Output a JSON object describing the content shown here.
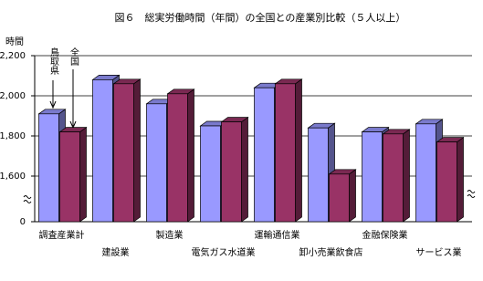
{
  "chart_data": {
    "type": "bar3d",
    "title": "図６　総実労働時間（年間）の全国との産業別比較（５人以上）",
    "y_label": "時間",
    "categories": [
      "調査産業計",
      "建設業",
      "製造業",
      "電気ガス水道業",
      "運輸通信業",
      "卸小売業飲食店",
      "金融保険業",
      "サービス業"
    ],
    "series": [
      {
        "name": "鳥取県",
        "color": "#9999ff",
        "values": [
          1910,
          2080,
          1960,
          1850,
          2040,
          1840,
          1820,
          1860
        ]
      },
      {
        "name": "全国",
        "color": "#993366",
        "values": [
          1820,
          2060,
          2010,
          1870,
          2060,
          1610,
          1810,
          1770
        ]
      }
    ],
    "ylim": [
      1600,
      2200
    ],
    "yticks": [
      0,
      {
        "value": 1600,
        "label": "1,600"
      },
      {
        "value": 1800,
        "label": "1,800"
      },
      {
        "value": 2000,
        "label": "2,000"
      },
      {
        "value": 2200,
        "label": "2,200"
      }
    ],
    "axis_break": true,
    "grid": true
  }
}
